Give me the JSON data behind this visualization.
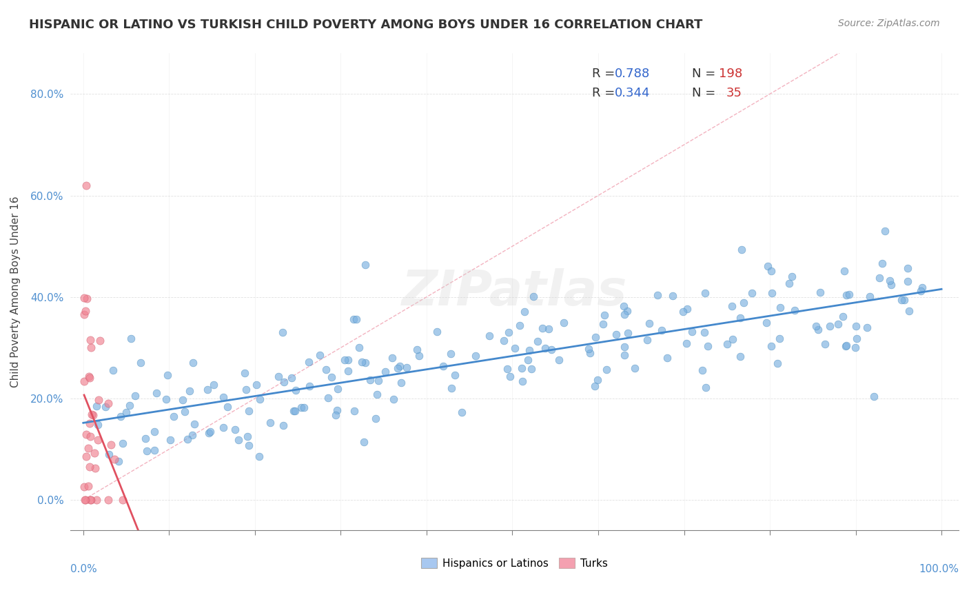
{
  "title": "HISPANIC OR LATINO VS TURKISH CHILD POVERTY AMONG BOYS UNDER 16 CORRELATION CHART",
  "source": "Source: ZipAtlas.com",
  "ylabel": "Child Poverty Among Boys Under 16",
  "yticks": [
    "0.0%",
    "20.0%",
    "40.0%",
    "60.0%",
    "80.0%"
  ],
  "ytick_vals": [
    0.0,
    0.2,
    0.4,
    0.6,
    0.8
  ],
  "xlim": [
    0.0,
    1.0
  ],
  "ylim": [
    -0.06,
    0.88
  ],
  "watermark": "ZIPatlas",
  "legend_blue_r": "0.788",
  "legend_blue_n": "198",
  "legend_pink_r": "0.344",
  "legend_pink_n": "35",
  "blue_scatter_color": "#7ab0e0",
  "pink_scatter_color": "#f08090",
  "blue_edge_color": "#5090c0",
  "pink_edge_color": "#d06070",
  "blue_line_color": "#4488cc",
  "pink_line_color": "#e05060",
  "blue_legend_color": "#a8c8f0",
  "pink_legend_color": "#f4a0b0",
  "diag_line_color": "#f0a0b0",
  "label_color": "#5090d0",
  "title_color": "#333333",
  "source_color": "#888888",
  "ylabel_color": "#444444"
}
